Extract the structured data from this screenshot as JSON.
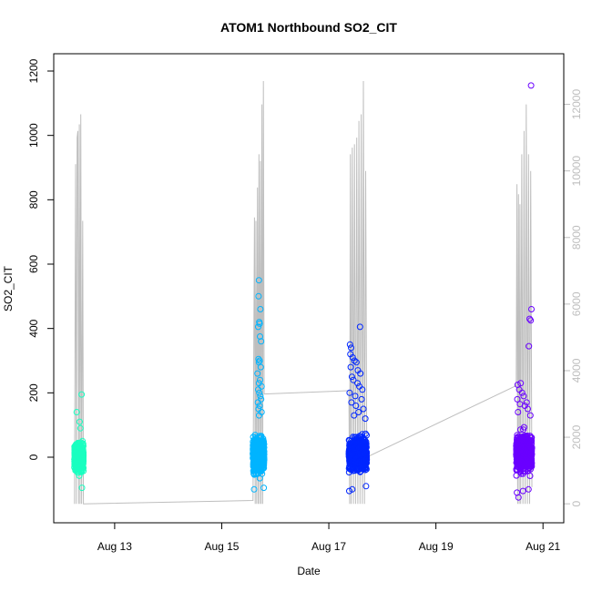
{
  "chart_data": {
    "type": "scatter",
    "title": "ATOM1 Northbound SO2_CIT",
    "xlabel": "Date",
    "ylabel": "SO2_CIT",
    "x_range": [
      "2022-08-12 02:00",
      "2022-08-21 04:00"
    ],
    "ylim": [
      -150,
      1200
    ],
    "y_ticks": [
      0,
      200,
      400,
      600,
      800,
      1000,
      1200
    ],
    "x_ticks": [
      {
        "date": "2022-08-13 00:00",
        "label": "Aug 13"
      },
      {
        "date": "2022-08-15 00:00",
        "label": "Aug 15"
      },
      {
        "date": "2022-08-17 00:00",
        "label": "Aug 17"
      },
      {
        "date": "2022-08-19 00:00",
        "label": "Aug 19"
      },
      {
        "date": "2022-08-21 00:00",
        "label": "Aug 21"
      }
    ],
    "secondary_axis": {
      "side": "right",
      "color": "#bebebe",
      "ylim": [
        -50,
        13000
      ],
      "ticks": [
        0,
        2000,
        4000,
        6000,
        8000,
        10000,
        12000
      ]
    },
    "line_series": {
      "color": "#bebebe",
      "points": [
        [
          "2022-08-12 06:00",
          0
        ],
        [
          "2022-08-12 06:30",
          10200
        ],
        [
          "2022-08-12 06:50",
          0
        ],
        [
          "2022-08-12 07:10",
          11000
        ],
        [
          "2022-08-12 07:30",
          11200
        ],
        [
          "2022-08-12 07:50",
          0
        ],
        [
          "2022-08-12 08:10",
          11400
        ],
        [
          "2022-08-12 08:30",
          0
        ],
        [
          "2022-08-12 08:50",
          11700
        ],
        [
          "2022-08-12 09:10",
          0
        ],
        [
          "2022-08-12 09:40",
          8500
        ],
        [
          "2022-08-12 10:00",
          0
        ],
        [
          "2022-08-15 14:00",
          100
        ],
        [
          "2022-08-15 14:40",
          8600
        ],
        [
          "2022-08-15 15:00",
          0
        ],
        [
          "2022-08-15 15:20",
          8500
        ],
        [
          "2022-08-15 15:40",
          0
        ],
        [
          "2022-08-15 16:00",
          9500
        ],
        [
          "2022-08-15 16:20",
          0
        ],
        [
          "2022-08-15 16:40",
          10500
        ],
        [
          "2022-08-15 17:00",
          0
        ],
        [
          "2022-08-15 17:20",
          10300
        ],
        [
          "2022-08-15 17:40",
          0
        ],
        [
          "2022-08-15 18:00",
          12000
        ],
        [
          "2022-08-15 18:20",
          0
        ],
        [
          "2022-08-15 18:40",
          12700
        ],
        [
          "2022-08-15 19:00",
          3300
        ],
        [
          "2022-08-17 09:00",
          3400
        ],
        [
          "2022-08-17 09:20",
          0
        ],
        [
          "2022-08-17 09:40",
          10500
        ],
        [
          "2022-08-17 10:00",
          0
        ],
        [
          "2022-08-17 10:30",
          10700
        ],
        [
          "2022-08-17 11:00",
          0
        ],
        [
          "2022-08-17 11:30",
          10800
        ],
        [
          "2022-08-17 12:00",
          0
        ],
        [
          "2022-08-17 12:30",
          11000
        ],
        [
          "2022-08-17 13:00",
          0
        ],
        [
          "2022-08-17 13:30",
          11500
        ],
        [
          "2022-08-17 14:00",
          0
        ],
        [
          "2022-08-17 14:30",
          11700
        ],
        [
          "2022-08-17 15:00",
          0
        ],
        [
          "2022-08-17 15:30",
          12700
        ],
        [
          "2022-08-17 16:00",
          0
        ],
        [
          "2022-08-17 16:30",
          10000
        ],
        [
          "2022-08-17 17:00",
          1400
        ],
        [
          "2022-08-20 12:00",
          3550
        ],
        [
          "2022-08-20 12:20",
          9600
        ],
        [
          "2022-08-20 12:40",
          0
        ],
        [
          "2022-08-20 13:00",
          9300
        ],
        [
          "2022-08-20 13:20",
          0
        ],
        [
          "2022-08-20 13:40",
          9000
        ],
        [
          "2022-08-20 14:00",
          0
        ],
        [
          "2022-08-20 14:30",
          10500
        ],
        [
          "2022-08-20 15:00",
          0
        ],
        [
          "2022-08-20 15:30",
          11200
        ],
        [
          "2022-08-20 16:00",
          0
        ],
        [
          "2022-08-20 16:30",
          12000
        ],
        [
          "2022-08-20 17:00",
          0
        ],
        [
          "2022-08-20 17:30",
          10500
        ],
        [
          "2022-08-20 18:00",
          0
        ],
        [
          "2022-08-20 18:30",
          10000
        ],
        [
          "2022-08-20 19:00",
          500
        ]
      ]
    },
    "scatter_series": [
      {
        "color": "#1affc0",
        "start": "2022-08-12 06:00",
        "end": "2022-08-12 10:00",
        "lo": -80,
        "hi": 80,
        "outliers": [
          [
            "2022-08-12 07:00",
            140
          ],
          [
            "2022-08-12 09:10",
            195
          ],
          [
            "2022-08-12 08:20",
            110
          ],
          [
            "2022-08-12 08:40",
            90
          ],
          [
            "2022-08-12 09:20",
            -95
          ]
        ]
      },
      {
        "color": "#00b4ff",
        "start": "2022-08-15 14:00",
        "end": "2022-08-15 19:00",
        "lo": -90,
        "hi": 110,
        "outliers": [
          [
            "2022-08-15 16:40",
            550
          ],
          [
            "2022-08-15 16:30",
            500
          ],
          [
            "2022-08-15 17:20",
            460
          ],
          [
            "2022-08-15 16:50",
            420
          ],
          [
            "2022-08-15 17:00",
            415
          ],
          [
            "2022-08-15 16:20",
            405
          ],
          [
            "2022-08-15 17:10",
            375
          ],
          [
            "2022-08-15 17:40",
            360
          ],
          [
            "2022-08-15 16:30",
            305
          ],
          [
            "2022-08-15 17:00",
            300
          ],
          [
            "2022-08-15 16:40",
            295
          ],
          [
            "2022-08-15 17:30",
            280
          ],
          [
            "2022-08-15 16:00",
            260
          ],
          [
            "2022-08-15 17:10",
            240
          ],
          [
            "2022-08-15 16:40",
            230
          ],
          [
            "2022-08-15 17:50",
            220
          ],
          [
            "2022-08-15 16:20",
            210
          ],
          [
            "2022-08-15 16:50",
            200
          ],
          [
            "2022-08-15 17:20",
            190
          ],
          [
            "2022-08-15 17:40",
            180
          ],
          [
            "2022-08-15 16:10",
            170
          ],
          [
            "2022-08-15 17:00",
            160
          ],
          [
            "2022-08-15 16:30",
            150
          ],
          [
            "2022-08-15 17:50",
            140
          ],
          [
            "2022-08-15 16:45",
            130
          ],
          [
            "2022-08-15 14:30",
            -100
          ],
          [
            "2022-08-15 18:50",
            -95
          ]
        ]
      },
      {
        "color": "#0026ff",
        "start": "2022-08-17 09:00",
        "end": "2022-08-17 17:00",
        "lo": -85,
        "hi": 110,
        "outliers": [
          [
            "2022-08-17 14:00",
            405
          ],
          [
            "2022-08-17 09:30",
            350
          ],
          [
            "2022-08-17 10:00",
            340
          ],
          [
            "2022-08-17 09:40",
            320
          ],
          [
            "2022-08-17 10:40",
            310
          ],
          [
            "2022-08-17 11:30",
            300
          ],
          [
            "2022-08-17 12:20",
            295
          ],
          [
            "2022-08-17 09:50",
            280
          ],
          [
            "2022-08-17 13:00",
            270
          ],
          [
            "2022-08-17 14:10",
            260
          ],
          [
            "2022-08-17 10:20",
            250
          ],
          [
            "2022-08-17 11:00",
            240
          ],
          [
            "2022-08-17 12:50",
            230
          ],
          [
            "2022-08-17 13:40",
            220
          ],
          [
            "2022-08-17 15:00",
            210
          ],
          [
            "2022-08-17 09:20",
            200
          ],
          [
            "2022-08-17 11:50",
            190
          ],
          [
            "2022-08-17 14:40",
            180
          ],
          [
            "2022-08-17 10:10",
            170
          ],
          [
            "2022-08-17 12:10",
            160
          ],
          [
            "2022-08-17 15:30",
            150
          ],
          [
            "2022-08-17 13:20",
            140
          ],
          [
            "2022-08-17 11:20",
            130
          ],
          [
            "2022-08-17 16:20",
            120
          ],
          [
            "2022-08-17 09:10",
            -105
          ],
          [
            "2022-08-17 10:30",
            -100
          ],
          [
            "2022-08-17 16:40",
            -90
          ]
        ]
      },
      {
        "color": "#6a00ff",
        "start": "2022-08-20 12:00",
        "end": "2022-08-20 19:00",
        "lo": -90,
        "hi": 120,
        "outliers": [
          [
            "2022-08-20 18:40",
            1155
          ],
          [
            "2022-08-20 18:50",
            460
          ],
          [
            "2022-08-20 18:00",
            430
          ],
          [
            "2022-08-20 18:30",
            425
          ],
          [
            "2022-08-20 17:40",
            345
          ],
          [
            "2022-08-20 12:40",
            225
          ],
          [
            "2022-08-20 14:00",
            230
          ],
          [
            "2022-08-20 13:20",
            210
          ],
          [
            "2022-08-20 14:40",
            200
          ],
          [
            "2022-08-20 15:20",
            190
          ],
          [
            "2022-08-20 12:30",
            180
          ],
          [
            "2022-08-20 16:40",
            170
          ],
          [
            "2022-08-20 13:40",
            165
          ],
          [
            "2022-08-20 15:50",
            160
          ],
          [
            "2022-08-20 17:10",
            150
          ],
          [
            "2022-08-20 12:50",
            140
          ],
          [
            "2022-08-20 18:20",
            130
          ],
          [
            "2022-08-20 12:20",
            -110
          ],
          [
            "2022-08-20 13:00",
            -125
          ],
          [
            "2022-08-20 15:00",
            -105
          ],
          [
            "2022-08-20 17:30",
            -100
          ]
        ]
      }
    ],
    "grid": false
  }
}
